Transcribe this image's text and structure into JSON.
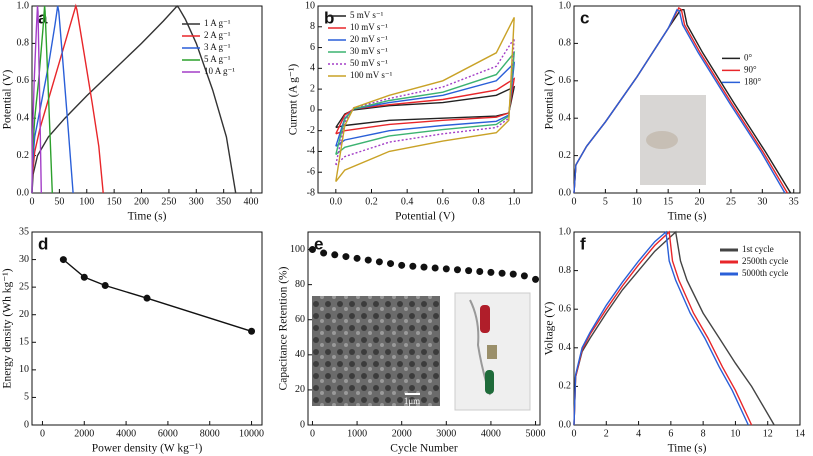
{
  "chart_data": [
    {
      "type": "line",
      "panel_label": "a",
      "xlabel": "Time (s)",
      "ylabel": "Potential (V)",
      "xlim": [
        0,
        420
      ],
      "ylim": [
        0,
        1.0
      ],
      "xticks": [
        0,
        50,
        100,
        150,
        200,
        250,
        300,
        350,
        400
      ],
      "yticks": [
        {
          "value": 0,
          "label": "0.0"
        },
        0.2,
        0.4,
        0.6,
        0.8,
        {
          "value": 1,
          "label": "1.0"
        }
      ],
      "legend": "upper right",
      "series": [
        {
          "name": "1 A g⁻¹",
          "color": "#333333",
          "x": [
            0,
            2,
            10,
            30,
            60,
            100,
            150,
            200,
            240,
            265,
            268,
            280,
            300,
            330,
            355,
            372
          ],
          "values": [
            0,
            0.1,
            0.2,
            0.3,
            0.4,
            0.52,
            0.66,
            0.8,
            0.92,
            1.0,
            0.99,
            0.93,
            0.8,
            0.55,
            0.3,
            0
          ]
        },
        {
          "name": "2 A g⁻¹",
          "color": "#e8262a",
          "x": [
            0,
            1,
            5,
            15,
            30,
            50,
            70,
            80,
            82,
            95,
            110,
            122,
            130
          ],
          "values": [
            0,
            0.1,
            0.22,
            0.35,
            0.5,
            0.7,
            0.9,
            1.0,
            0.98,
            0.75,
            0.48,
            0.25,
            0
          ]
        },
        {
          "name": "3 A g⁻¹",
          "color": "#2a5fd8",
          "x": [
            0,
            1,
            5,
            15,
            30,
            42,
            47,
            49,
            57,
            66,
            75
          ],
          "values": [
            0,
            0.15,
            0.3,
            0.45,
            0.68,
            0.9,
            1.0,
            0.97,
            0.68,
            0.35,
            0
          ]
        },
        {
          "name": "5 A g⁻¹",
          "color": "#2ca02c",
          "x": [
            0,
            1,
            5,
            12,
            20,
            23,
            24,
            29,
            33,
            37
          ],
          "values": [
            0,
            0.2,
            0.4,
            0.6,
            0.88,
            1.0,
            0.97,
            0.6,
            0.3,
            0
          ]
        },
        {
          "name": "10 A g⁻¹",
          "color": "#a33ec7",
          "x": [
            0,
            1,
            4,
            8,
            10,
            11,
            14,
            17
          ],
          "values": [
            0,
            0.3,
            0.6,
            0.88,
            1.0,
            0.97,
            0.5,
            0
          ]
        }
      ]
    },
    {
      "type": "line",
      "panel_label": "b",
      "xlabel": "Potential (V)",
      "ylabel": "Current (A g⁻¹)",
      "xlim": [
        -0.1,
        1.1
      ],
      "ylim": [
        -8,
        10
      ],
      "xticks": [
        {
          "value": 0,
          "label": "0.0"
        },
        0.2,
        0.4,
        0.6,
        0.8,
        {
          "value": 1,
          "label": "1.0"
        }
      ],
      "yticks": [
        -8,
        -6,
        -4,
        -2,
        0,
        2,
        4,
        6,
        8,
        10
      ],
      "legend": "upper left",
      "series": [
        {
          "name": "5 mV s⁻¹",
          "color": "#222222",
          "x": [
            0,
            0.05,
            0.1,
            0.3,
            0.6,
            0.9,
            1.0,
            0.97,
            0.9,
            0.6,
            0.3,
            0.05,
            0
          ],
          "values": [
            -1.7,
            -0.4,
            0,
            0.4,
            0.7,
            1.4,
            2.2,
            -0.3,
            -0.6,
            -0.8,
            -1,
            -1.5,
            -1.7
          ]
        },
        {
          "name": "10 mV s⁻¹",
          "color": "#e8262a",
          "x": [
            0,
            0.05,
            0.1,
            0.3,
            0.6,
            0.9,
            1.0,
            0.97,
            0.9,
            0.6,
            0.3,
            0.05,
            0
          ],
          "values": [
            -2.3,
            -0.5,
            0.1,
            0.5,
            1,
            1.9,
            3.0,
            -0.3,
            -0.7,
            -1,
            -1.4,
            -2,
            -2.3
          ]
        },
        {
          "name": "20 mV s⁻¹",
          "color": "#2a5fd8",
          "x": [
            0,
            0.05,
            0.1,
            0.3,
            0.6,
            0.9,
            1.0,
            0.97,
            0.9,
            0.6,
            0.3,
            0.05,
            0
          ],
          "values": [
            -3.5,
            -0.8,
            0.1,
            0.7,
            1.4,
            2.8,
            4.5,
            -0.5,
            -1.1,
            -1.5,
            -2,
            -2.9,
            -3.5
          ]
        },
        {
          "name": "30 mV s⁻¹",
          "color": "#3cb371",
          "x": [
            0,
            0.05,
            0.1,
            0.3,
            0.6,
            0.9,
            1.0,
            0.97,
            0.9,
            0.6,
            0.3,
            0.05,
            0
          ],
          "values": [
            -4.3,
            -0.9,
            0.1,
            0.9,
            1.7,
            3.4,
            5.5,
            -0.6,
            -1.4,
            -1.9,
            -2.5,
            -3.6,
            -4.3
          ]
        },
        {
          "name": "50 mV s⁻¹",
          "color": "#a33ec7",
          "dash": true,
          "x": [
            0,
            0.05,
            0.1,
            0.3,
            0.6,
            0.9,
            1.0,
            0.97,
            0.9,
            0.6,
            0.3,
            0.05,
            0
          ],
          "values": [
            -5.3,
            -1.2,
            0.2,
            1.1,
            2.2,
            4.2,
            6.9,
            -0.8,
            -1.7,
            -2.3,
            -3.1,
            -4.5,
            -5.3
          ]
        },
        {
          "name": "100 mV s⁻¹",
          "color": "#c9a227",
          "x": [
            0,
            0.05,
            0.1,
            0.3,
            0.6,
            0.9,
            1.0,
            0.97,
            0.9,
            0.6,
            0.3,
            0.05,
            0
          ],
          "values": [
            -6.9,
            -1.5,
            0.2,
            1.4,
            2.8,
            5.5,
            8.9,
            -1.0,
            -2.2,
            -3.0,
            -4.0,
            -5.8,
            -6.9
          ]
        }
      ]
    },
    {
      "type": "line",
      "panel_label": "c",
      "xlabel": "Time (s)",
      "ylabel": "Potential (V)",
      "xlim": [
        0,
        36
      ],
      "ylim": [
        0,
        1.0
      ],
      "xticks": [
        0,
        5,
        10,
        15,
        20,
        25,
        30,
        35
      ],
      "yticks": [
        {
          "value": 0,
          "label": "0.0"
        },
        0.2,
        0.4,
        0.6,
        0.8,
        {
          "value": 1,
          "label": "1.0"
        }
      ],
      "legend": "center right",
      "series": [
        {
          "name": "0°",
          "color": "#222222",
          "x": [
            0,
            0.3,
            2,
            5,
            10,
            15,
            17,
            17.5,
            18,
            20.5,
            25.5,
            30.5,
            34.5
          ],
          "values": [
            0,
            0.15,
            0.25,
            0.38,
            0.62,
            0.88,
            0.98,
            0.98,
            0.9,
            0.75,
            0.48,
            0.22,
            0
          ]
        },
        {
          "name": "90°",
          "color": "#e8262a",
          "x": [
            0,
            0.3,
            2,
            5,
            10,
            15,
            16.7,
            17.1,
            17.6,
            20.1,
            25.1,
            30.1,
            34
          ],
          "values": [
            0,
            0.15,
            0.25,
            0.38,
            0.62,
            0.88,
            0.99,
            0.98,
            0.9,
            0.75,
            0.48,
            0.22,
            0
          ]
        },
        {
          "name": "180°",
          "color": "#2a5fd8",
          "x": [
            0,
            0.3,
            2,
            5,
            10,
            15,
            16.4,
            16.8,
            17.3,
            19.8,
            24.8,
            29.8,
            33.6
          ],
          "values": [
            0,
            0.15,
            0.25,
            0.38,
            0.62,
            0.88,
            0.98,
            0.97,
            0.9,
            0.75,
            0.48,
            0.22,
            0
          ]
        }
      ]
    },
    {
      "type": "line",
      "panel_label": "d",
      "xlabel": "Power density (W kg⁻¹)",
      "ylabel": "Energy density (Wh kg⁻¹)",
      "xlim": [
        -500,
        10500
      ],
      "ylim": [
        0,
        35
      ],
      "xticks": [
        0,
        2000,
        4000,
        6000,
        8000,
        10000
      ],
      "yticks": [
        0,
        5,
        10,
        15,
        20,
        25,
        30,
        35
      ],
      "marker": true,
      "line": true,
      "color": "#111111",
      "x": [
        1000,
        2000,
        3000,
        5000,
        10000
      ],
      "values": [
        30,
        26.8,
        25.3,
        23,
        17
      ]
    },
    {
      "type": "scatter",
      "panel_label": "e",
      "xlabel": "Cycle Number",
      "ylabel": "Capacitance Retention (%)",
      "xlim": [
        -100,
        5100
      ],
      "ylim": [
        0,
        110
      ],
      "xticks": [
        0,
        1000,
        2000,
        3000,
        4000,
        5000
      ],
      "yticks": [
        0,
        20,
        40,
        60,
        80,
        100
      ],
      "marker": true,
      "line": false,
      "color": "#111111",
      "inset_scale_label": "1μm",
      "x": [
        0,
        250,
        500,
        750,
        1000,
        1250,
        1500,
        1750,
        2000,
        2250,
        2500,
        2750,
        3000,
        3250,
        3500,
        3750,
        4000,
        4250,
        4500,
        4750,
        5000
      ],
      "values": [
        100,
        98,
        97,
        96,
        95,
        94,
        93,
        92,
        91,
        90.5,
        90,
        89.5,
        89,
        88.5,
        88,
        87.5,
        87,
        86.5,
        86,
        85,
        83
      ]
    },
    {
      "type": "line",
      "panel_label": "f",
      "xlabel": "Time (s)",
      "ylabel": "Voltage (V)",
      "xlim": [
        0,
        14
      ],
      "ylim": [
        0,
        1.0
      ],
      "xticks": [
        0,
        2,
        4,
        6,
        8,
        10,
        12,
        14
      ],
      "yticks": [
        {
          "value": 0,
          "label": "0.0"
        },
        0.2,
        0.4,
        0.6,
        0.8,
        {
          "value": 1,
          "label": "1.0"
        }
      ],
      "legend": "upper right",
      "series": [
        {
          "name": "1st cycle",
          "color": "#444444",
          "x": [
            0,
            0.1,
            0.5,
            1,
            2,
            3,
            4,
            5,
            6.3,
            6.6,
            7,
            8,
            9,
            10,
            11,
            12.4
          ],
          "values": [
            0,
            0.25,
            0.38,
            0.45,
            0.58,
            0.7,
            0.8,
            0.9,
            1.0,
            0.85,
            0.75,
            0.58,
            0.45,
            0.32,
            0.2,
            0
          ]
        },
        {
          "name": "2500th cycle",
          "color": "#e8262a",
          "x": [
            0,
            0.1,
            0.5,
            1,
            2,
            3,
            4,
            5,
            5.9,
            6.1,
            6.5,
            7.4,
            8.3,
            9.2,
            10,
            11
          ],
          "values": [
            0,
            0.25,
            0.39,
            0.47,
            0.6,
            0.72,
            0.83,
            0.93,
            1.0,
            0.85,
            0.75,
            0.58,
            0.45,
            0.3,
            0.18,
            0
          ]
        },
        {
          "name": "5000th cycle",
          "color": "#2a5fd8",
          "x": [
            0,
            0.1,
            0.5,
            1,
            2,
            3,
            4,
            5,
            5.7,
            5.9,
            6.3,
            7.2,
            8.1,
            9,
            9.8,
            10.8
          ],
          "values": [
            0,
            0.26,
            0.4,
            0.48,
            0.62,
            0.74,
            0.85,
            0.95,
            1.0,
            0.85,
            0.75,
            0.58,
            0.45,
            0.3,
            0.18,
            0
          ]
        }
      ]
    }
  ]
}
